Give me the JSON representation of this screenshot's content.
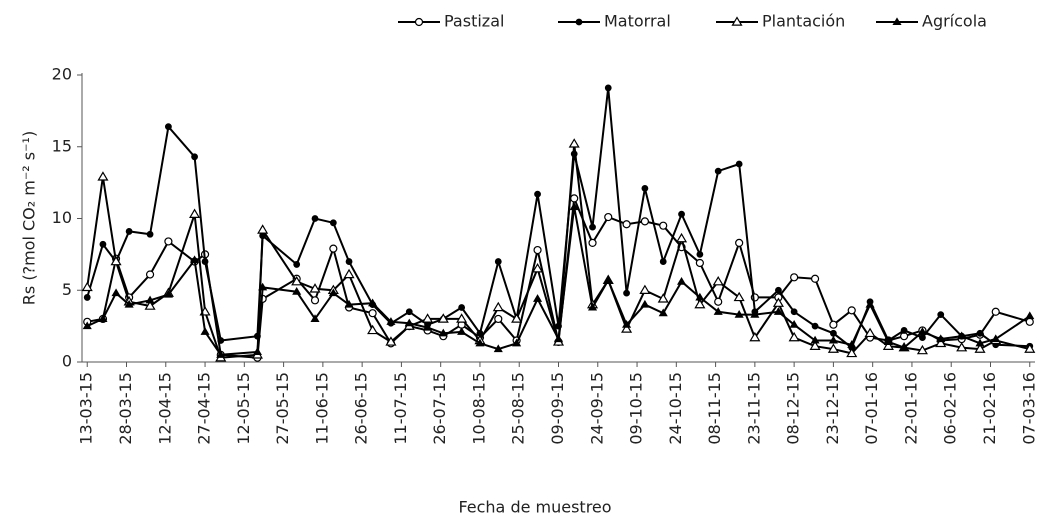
{
  "chart_data": {
    "type": "line",
    "xlabel": "Fecha de muestreo",
    "ylabel": "Rs (?mol CO₂ m⁻² s⁻¹)",
    "legend": "top-right",
    "x": [
      "2015-03-13",
      "2015-03-19",
      "2015-03-24",
      "2015-03-29",
      "2015-04-06",
      "2015-04-13",
      "2015-04-23",
      "2015-04-27",
      "2015-05-03",
      "2015-05-17",
      "2015-05-19",
      "2015-06-01",
      "2015-06-08",
      "2015-06-15",
      "2015-06-21",
      "2015-06-30",
      "2015-07-07",
      "2015-07-14",
      "2015-07-21",
      "2015-07-27",
      "2015-08-03",
      "2015-08-10",
      "2015-08-17",
      "2015-08-24",
      "2015-09-01",
      "2015-09-09",
      "2015-09-15",
      "2015-09-22",
      "2015-09-28",
      "2015-10-05",
      "2015-10-12",
      "2015-10-19",
      "2015-10-26",
      "2015-11-02",
      "2015-11-09",
      "2015-11-17",
      "2015-11-23",
      "2015-12-02",
      "2015-12-08",
      "2015-12-16",
      "2015-12-23",
      "2015-12-30",
      "2016-01-06",
      "2016-01-13",
      "2016-01-19",
      "2016-01-26",
      "2016-02-02",
      "2016-02-10",
      "2016-02-17",
      "2016-02-23",
      "2016-03-07"
    ],
    "series": [
      {
        "name": "Pastizal",
        "color": "#000000",
        "marker": "open-circle",
        "values": [
          2.8,
          3.0,
          7.2,
          4.5,
          6.1,
          8.4,
          7.0,
          7.5,
          0.5,
          0.3,
          4.4,
          5.8,
          4.3,
          7.9,
          3.8,
          3.4,
          1.3,
          2.5,
          2.2,
          1.8,
          2.6,
          1.7,
          3.0,
          1.5,
          7.8,
          1.4,
          11.4,
          8.3,
          10.1,
          9.6,
          9.8,
          9.5,
          8.0,
          6.9,
          4.2,
          8.3,
          4.5,
          4.5,
          5.9,
          5.8,
          2.6,
          3.6,
          1.7,
          1.5,
          1.8,
          2.2,
          1.5,
          1.6,
          1.9,
          3.5,
          2.8
        ]
      },
      {
        "name": "Matorral",
        "color": "#000000",
        "marker": "filled-circle",
        "values": [
          4.5,
          8.2,
          7.0,
          9.1,
          8.9,
          16.4,
          14.3,
          7.0,
          1.5,
          1.8,
          8.8,
          6.8,
          10.0,
          9.7,
          7.0,
          4.0,
          2.7,
          3.5,
          2.6,
          3.0,
          3.8,
          2.0,
          7.0,
          3.0,
          11.7,
          2.5,
          14.5,
          9.4,
          19.1,
          4.8,
          12.1,
          7.0,
          10.3,
          7.5,
          13.3,
          13.8,
          3.5,
          5.0,
          3.5,
          2.5,
          2.0,
          1.0,
          4.2,
          1.5,
          2.2,
          1.7,
          3.3,
          1.8,
          2.0,
          1.2,
          1.1
        ]
      },
      {
        "name": "Plantación",
        "color": "#000000",
        "marker": "open-triangle",
        "values": [
          5.2,
          12.9,
          7.0,
          4.2,
          3.9,
          4.8,
          10.3,
          3.5,
          0.3,
          0.5,
          9.2,
          5.6,
          5.1,
          5.0,
          6.1,
          2.2,
          1.4,
          2.5,
          3.0,
          3.0,
          3.0,
          1.5,
          3.8,
          3.0,
          6.5,
          1.4,
          15.2,
          4.0,
          5.7,
          2.3,
          5.0,
          4.4,
          8.6,
          4.0,
          5.6,
          4.5,
          1.7,
          4.1,
          1.7,
          1.1,
          0.9,
          0.6,
          2.0,
          1.1,
          1.0,
          0.8,
          1.3,
          1.0,
          0.9,
          1.5,
          0.9
        ]
      },
      {
        "name": "Agrícola",
        "color": "#000000",
        "marker": "filled-triangle",
        "values": [
          2.5,
          3.0,
          4.8,
          4.0,
          4.3,
          4.7,
          7.1,
          2.1,
          0.5,
          0.7,
          5.2,
          4.9,
          3.0,
          4.8,
          4.0,
          4.1,
          2.8,
          2.7,
          2.4,
          2.0,
          2.1,
          1.3,
          0.9,
          1.3,
          4.4,
          1.6,
          10.8,
          3.8,
          5.7,
          2.6,
          4.0,
          3.4,
          5.6,
          4.5,
          3.5,
          3.3,
          3.3,
          3.5,
          2.6,
          1.5,
          1.5,
          1.2,
          4.0,
          1.4,
          1.0,
          2.1,
          1.6,
          1.8,
          1.3,
          1.6,
          3.2
        ]
      }
    ],
    "xlim": [
      "2015-03-11",
      "2016-03-09"
    ],
    "xticks": [
      {
        "value": "2015-03-13",
        "label": "13-03-15"
      },
      {
        "value": "2015-03-28",
        "label": "28-03-15"
      },
      {
        "value": "2015-04-12",
        "label": "12-04-15"
      },
      {
        "value": "2015-04-27",
        "label": "27-04-15"
      },
      {
        "value": "2015-05-12",
        "label": "12-05-15"
      },
      {
        "value": "2015-05-27",
        "label": "27-05-15"
      },
      {
        "value": "2015-06-11",
        "label": "11-06-15"
      },
      {
        "value": "2015-06-26",
        "label": "26-06-15"
      },
      {
        "value": "2015-07-11",
        "label": "11-07-15"
      },
      {
        "value": "2015-07-26",
        "label": "26-07-15"
      },
      {
        "value": "2015-08-10",
        "label": "10-08-15"
      },
      {
        "value": "2015-08-25",
        "label": "25-08-15"
      },
      {
        "value": "2015-09-09",
        "label": "09-09-15"
      },
      {
        "value": "2015-09-24",
        "label": "24-09-15"
      },
      {
        "value": "2015-10-09",
        "label": "09-10-15"
      },
      {
        "value": "2015-10-24",
        "label": "24-10-15"
      },
      {
        "value": "2015-11-08",
        "label": "08-11-15"
      },
      {
        "value": "2015-11-23",
        "label": "23-11-15"
      },
      {
        "value": "2015-12-08",
        "label": "08-12-15"
      },
      {
        "value": "2015-12-23",
        "label": "23-12-15"
      },
      {
        "value": "2016-01-07",
        "label": "07-01-16"
      },
      {
        "value": "2016-01-22",
        "label": "22-01-16"
      },
      {
        "value": "2016-02-06",
        "label": "06-02-16"
      },
      {
        "value": "2016-02-21",
        "label": "21-02-16"
      },
      {
        "value": "2016-03-07",
        "label": "07-03-16"
      }
    ],
    "ylim": [
      0,
      20
    ],
    "yticks": [
      0,
      5,
      10,
      15,
      20
    ]
  }
}
